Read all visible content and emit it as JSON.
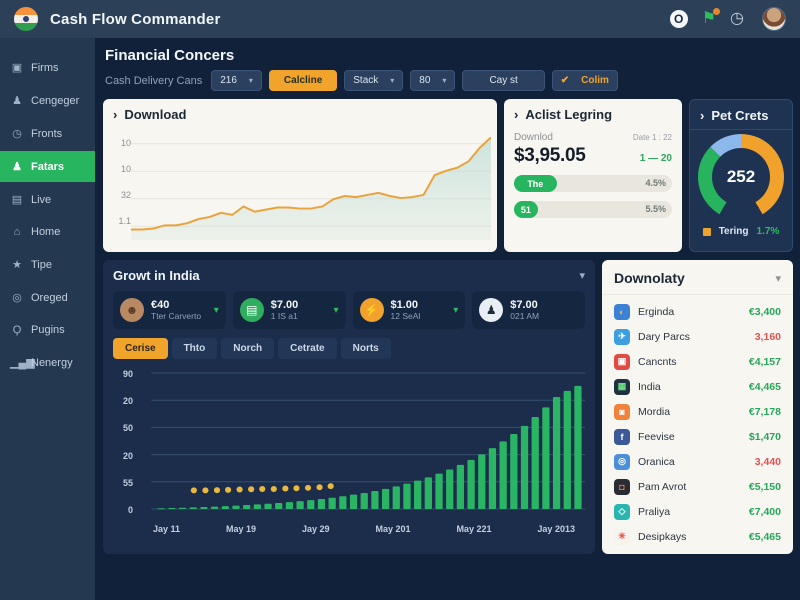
{
  "app": {
    "title": "Cash Flow Commander"
  },
  "header": {
    "circle_icon": "O",
    "flag_icon": "⚑",
    "clock_icon": "◷"
  },
  "sidebar": {
    "items": [
      {
        "id": "sidebar-item-firms",
        "label": "Firms",
        "icon": "briefcase-icon",
        "glyph": "▣"
      },
      {
        "id": "sidebar-item-cengeger",
        "label": "Cengeger",
        "icon": "user-icon",
        "glyph": "♟"
      },
      {
        "id": "sidebar-item-fronts",
        "label": "Fronts",
        "icon": "clock-icon",
        "glyph": "◷"
      },
      {
        "id": "sidebar-item-fatars",
        "label": "Fatars",
        "icon": "user-badge-icon",
        "glyph": "♟",
        "active": true
      },
      {
        "id": "sidebar-item-live",
        "label": "Live",
        "icon": "keyboard-icon",
        "glyph": "▤"
      },
      {
        "id": "sidebar-item-home",
        "label": "Home",
        "icon": "home-icon",
        "glyph": "⌂"
      },
      {
        "id": "sidebar-item-tipe",
        "label": "Tipe",
        "icon": "star-icon",
        "glyph": "★"
      },
      {
        "id": "sidebar-item-oreged",
        "label": "Oreged",
        "icon": "at-circle-icon",
        "glyph": "◎"
      },
      {
        "id": "sidebar-item-pugins",
        "label": "Pugins",
        "icon": "search-icon",
        "glyph": "Ϙ"
      },
      {
        "id": "sidebar-item-nenergy",
        "label": "Nenergy",
        "icon": "bar-chart-icon",
        "glyph": "▁▄▆"
      }
    ]
  },
  "toolbar": {
    "title": "Financial Concers",
    "subtitle": "Cash Delivery Cans",
    "period_dropdown": "216",
    "calc_button": "Calcline",
    "stack_dropdown": "Stack",
    "size_dropdown": "80",
    "cay_button": "Cay st",
    "colim_check": "✔",
    "colim_button": "Colim",
    "chevron": "▾"
  },
  "download_card": {
    "chevron": "›",
    "title": "Download",
    "y_ticks": [
      "10",
      "10",
      "32",
      "1.1"
    ],
    "line_color": "#e8a33d",
    "area_color": "#bfded6",
    "grid_color": "#e6e3da",
    "ymax": 10.5,
    "values": [
      1.0,
      1.0,
      1.1,
      1.4,
      1.4,
      1.6,
      2.0,
      2.2,
      2.6,
      2.4,
      3.2,
      2.7,
      2.9,
      3.1,
      3.1,
      3.0,
      3.0,
      3.2,
      3.9,
      4.2,
      4.1,
      4.3,
      4.5,
      4.2,
      4.0,
      4.1,
      4.3,
      6.2,
      6.6,
      6.9,
      7.5,
      8.8,
      9.8
    ]
  },
  "aclist_card": {
    "chevron": "›",
    "title": "Aclist Legring",
    "label": "Downlod",
    "date": "Date 1 : 22",
    "amount": "$3,95.05",
    "range": "1 — 20",
    "rows": [
      {
        "pill": "The",
        "fill": "27%",
        "pct": "4.5%"
      },
      {
        "pill": "51",
        "fill": "15%",
        "pct": "5.5%"
      }
    ]
  },
  "gauge_card": {
    "chevron": "›",
    "title": "Pet Crets",
    "value": "252",
    "legend_label": "Tering",
    "legend_value": "1.7%",
    "segments": [
      {
        "name": "arc-orange",
        "color": "#f0a22c",
        "start": 0,
        "end": 150
      },
      {
        "name": "arc-green",
        "color": "#28b35f",
        "start": 210,
        "end": 315
      },
      {
        "name": "arc-blue",
        "color": "#8cb8ec",
        "start": 315,
        "end": 360
      }
    ]
  },
  "growt_panel": {
    "title": "Growt in India",
    "chevron": "▾",
    "stats": [
      {
        "value": "€40",
        "label": "Tter Carverto",
        "icon": "avatar",
        "icon_bg": "#b98963",
        "glyph": "☻",
        "glyph_color": "#5a3a28",
        "has_chevron": true,
        "chevron": "▾"
      },
      {
        "value": "$7.00",
        "label": "1 IS a1",
        "icon": "money-card-icon",
        "icon_bg": "#2fae5f",
        "glyph": "▤",
        "glyph_color": "#ffffff",
        "has_chevron": true,
        "chevron": "▾"
      },
      {
        "value": "$1.00",
        "label": "12 SeAl",
        "icon": "lightbulb-icon",
        "icon_bg": "#f0a22c",
        "glyph": "⚡",
        "glyph_color": "#ffffff",
        "has_chevron": true,
        "chevron": "▾"
      },
      {
        "value": "$7.00",
        "label": "021 AM",
        "icon": "user-icon",
        "icon_bg": "#e9eef4",
        "glyph": "♟",
        "glyph_color": "#1d2b3a",
        "has_chevron": false,
        "chevron": "▾"
      }
    ],
    "tabs": [
      {
        "label": "Cerise",
        "active": true
      },
      {
        "label": "Thto"
      },
      {
        "label": "Norch"
      },
      {
        "label": "Cetrate"
      },
      {
        "label": "Norts"
      }
    ],
    "bar_chart": {
      "y_ticks": [
        "90",
        "20",
        "50",
        "20",
        "55",
        "0"
      ],
      "x_labels": [
        "Jay 11",
        "May 19",
        "Jay 29",
        "May 201",
        "May 221",
        "Jay 2013"
      ],
      "bar_color": "#29b563",
      "dot_color": "#e9b83c",
      "grid_color": "#35506f",
      "ymax": 95,
      "bars": [
        0.5,
        0.7,
        0.9,
        1.1,
        1.4,
        1.7,
        2.0,
        2.4,
        2.8,
        3.2,
        3.7,
        4.2,
        4.8,
        5.5,
        6.2,
        7.0,
        7.9,
        8.9,
        10.0,
        11.2,
        12.6,
        14.1,
        15.8,
        17.7,
        19.8,
        22.1,
        24.7,
        27.6,
        30.8,
        34.3,
        38.2,
        42.5,
        47.2,
        52.4,
        58.1,
        64.3,
        71.0,
        78.2,
        82.5,
        86.0
      ],
      "dots": [
        [
          0.085,
          13
        ],
        [
          0.112,
          13
        ],
        [
          0.139,
          13.2
        ],
        [
          0.165,
          13.4
        ],
        [
          0.192,
          13.6
        ],
        [
          0.219,
          13.8
        ],
        [
          0.245,
          14
        ],
        [
          0.272,
          14
        ],
        [
          0.299,
          14.3
        ],
        [
          0.325,
          14.5
        ],
        [
          0.352,
          14.8
        ],
        [
          0.379,
          15.2
        ],
        [
          0.405,
          16
        ]
      ]
    }
  },
  "downolaty": {
    "title": "Downolaty",
    "chevron": "▾",
    "items": [
      {
        "name": "Erginda",
        "value": "€3,400",
        "icon": "globe-icon",
        "icon_bg": "#3b82d6",
        "glyph": "◐",
        "glyph_color": "#f4b63e"
      },
      {
        "name": "Dary Parcs",
        "value": "3,160",
        "icon": "telegram-icon",
        "icon_bg": "#3d9fe0",
        "glyph": "✈",
        "glyph_color": "#ffffff",
        "negative": true
      },
      {
        "name": "Cancnts",
        "value": "€4,157",
        "icon": "app-red-icon",
        "icon_bg": "#e04b43",
        "glyph": "▣",
        "glyph_color": "#ffffff"
      },
      {
        "name": "India",
        "value": "€4,465",
        "icon": "app-dark-icon",
        "icon_bg": "#20313f",
        "glyph": "▦",
        "glyph_color": "#6ee087"
      },
      {
        "name": "Mordia",
        "value": "€7,178",
        "icon": "app-orange-icon",
        "icon_bg": "#f0823c",
        "glyph": "◙",
        "glyph_color": "#ffffff"
      },
      {
        "name": "Feevise",
        "value": "$1,470",
        "icon": "facebook-icon",
        "icon_bg": "#3b5998",
        "glyph": "f",
        "glyph_color": "#ffffff"
      },
      {
        "name": "Oranica",
        "value": "3,440",
        "icon": "app-blue-icon",
        "icon_bg": "#4a90d9",
        "glyph": "◎",
        "glyph_color": "#ffffff",
        "negative": true
      },
      {
        "name": "Pam Avrot",
        "value": "€5,150",
        "icon": "app-brown-icon",
        "icon_bg": "#2b2b33",
        "glyph": "◘",
        "glyph_color": "#f0823c"
      },
      {
        "name": "Praliya",
        "value": "€7,400",
        "icon": "app-teal-icon",
        "icon_bg": "#2ab5b0",
        "glyph": "◇",
        "glyph_color": "#ffffff"
      },
      {
        "name": "Desipkays",
        "value": "€5,465",
        "icon": "asterisk-icon",
        "icon_bg": "#f6f2ec",
        "glyph": "✳",
        "glyph_color": "#e04b43"
      }
    ]
  }
}
